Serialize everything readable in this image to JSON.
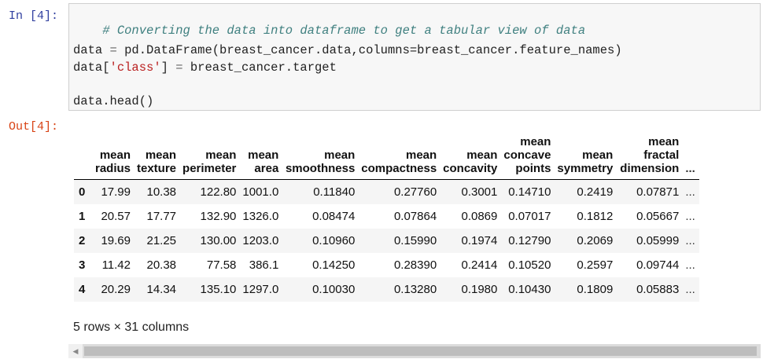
{
  "cell": {
    "in_prompt": "In [4]:",
    "out_prompt": "Out[4]:",
    "code": {
      "comment": "# Converting the data into dataframe to get a tabular view of data",
      "line2_lhs": "data",
      "line2_op": " = ",
      "line2_rhs": "pd.DataFrame(breast_cancer.data,columns=breast_cancer.feature_names)",
      "line3_a": "data[",
      "line3_str": "'class'",
      "line3_b": "] ",
      "line3_op": "=",
      "line3_c": " breast_cancer.target",
      "line4": "data.head()"
    }
  },
  "table": {
    "columns": [
      [
        "mean",
        "radius"
      ],
      [
        "mean",
        "texture"
      ],
      [
        "mean",
        "perimeter"
      ],
      [
        "mean",
        "area"
      ],
      [
        "mean",
        "smoothness"
      ],
      [
        "mean",
        "compactness"
      ],
      [
        "mean",
        "concavity"
      ],
      [
        "mean",
        "concave",
        "points"
      ],
      [
        "mean",
        "symmetry"
      ],
      [
        "mean",
        "fractal",
        "dimension"
      ]
    ],
    "ellipsis": "...",
    "rows": [
      {
        "index": "0",
        "values": [
          "17.99",
          "10.38",
          "122.80",
          "1001.0",
          "0.11840",
          "0.27760",
          "0.3001",
          "0.14710",
          "0.2419",
          "0.07871"
        ]
      },
      {
        "index": "1",
        "values": [
          "20.57",
          "17.77",
          "132.90",
          "1326.0",
          "0.08474",
          "0.07864",
          "0.0869",
          "0.07017",
          "0.1812",
          "0.05667"
        ]
      },
      {
        "index": "2",
        "values": [
          "19.69",
          "21.25",
          "130.00",
          "1203.0",
          "0.10960",
          "0.15990",
          "0.1974",
          "0.12790",
          "0.2069",
          "0.05999"
        ]
      },
      {
        "index": "3",
        "values": [
          "11.42",
          "20.38",
          "77.58",
          "386.1",
          "0.14250",
          "0.28390",
          "0.2414",
          "0.10520",
          "0.2597",
          "0.09744"
        ]
      },
      {
        "index": "4",
        "values": [
          "20.29",
          "14.34",
          "135.10",
          "1297.0",
          "0.10030",
          "0.13280",
          "0.1980",
          "0.10430",
          "0.1809",
          "0.05883"
        ]
      }
    ],
    "summary": "5 rows × 31 columns"
  },
  "scrollbar": {
    "left_arrow_icon": "caret-left-icon"
  }
}
